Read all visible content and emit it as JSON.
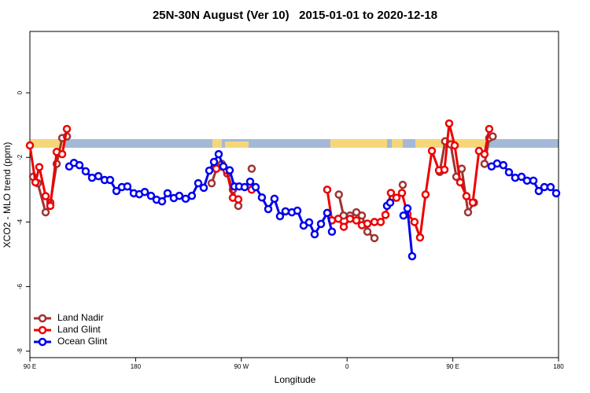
{
  "chart_data": {
    "type": "line",
    "title": "25N-30N August (Ver 10)   2015-01-01 to 2020-12-18",
    "x_label": "Longitude",
    "y_label": "XCO2 - MLO trend (ppm)",
    "xlim": [
      90,
      540
    ],
    "ylim": [
      -8.2,
      1.9
    ],
    "xticks": [
      {
        "value": 90,
        "label": "90 E"
      },
      {
        "value": 180,
        "label": "180"
      },
      {
        "value": 270,
        "label": "90 W"
      },
      {
        "value": 360,
        "label": "0"
      },
      {
        "value": 450,
        "label": "90 E"
      },
      {
        "value": 540,
        "label": "180"
      }
    ],
    "yticks": [
      0,
      -2,
      -4,
      -6,
      -8
    ],
    "legend": "bottom-left",
    "series": [
      {
        "name": "Land Nadir",
        "color": "#a03232",
        "x": [
          92.7,
          96.7,
          103.4,
          107.4,
          112.8,
          117.5,
          121.5,
          null,
          244.7,
          249.4,
          253.4,
          258,
          262.8,
          267.4,
          null,
          278.8,
          null,
          353,
          357,
          362.5,
          367.9,
          372.6,
          377.3,
          383.3,
          null,
          407.4,
          null,
          438.9,
          443.5,
          448.2,
          453,
          457.6,
          463,
          468,
          null,
          477,
          481,
          484
        ],
        "values": [
          -2.6,
          -2.8,
          -3.7,
          -3.4,
          -2.2,
          -1.4,
          -1.35,
          null,
          -2.8,
          -2.3,
          -2.2,
          -2.5,
          -3.0,
          -3.5,
          null,
          -2.35,
          null,
          -3.15,
          -3.8,
          -3.8,
          -3.7,
          -3.8,
          -4.3,
          -4.5,
          null,
          -2.85,
          null,
          -2.45,
          -1.5,
          -1.6,
          -2.6,
          -2.35,
          -3.7,
          -3.4,
          null,
          -2.2,
          -1.4,
          -1.35
        ]
      },
      {
        "name": "Land Glint",
        "color": "#ee0000",
        "x": [
          90,
          94.7,
          98,
          103.4,
          107.4,
          112.8,
          117.5,
          121.5,
          null,
          248.7,
          257.4,
          262.8,
          267.4,
          null,
          278.8,
          null,
          343.1,
          347.1,
          352.5,
          357.2,
          362.5,
          367.9,
          372.6,
          377.3,
          383.3,
          388.6,
          392.7,
          397.3,
          402,
          406.7,
          411.4,
          417.4,
          422.1,
          426.8,
          432.2,
          438.2,
          442.9,
          446.9,
          451.6,
          456.3,
          461.6,
          467,
          472.3,
          477,
          481
        ],
        "values": [
          -1.63,
          -2.77,
          -2.3,
          -3.2,
          -3.5,
          -1.83,
          -1.9,
          -1.12,
          null,
          -2.35,
          -2.4,
          -3.25,
          -3.3,
          null,
          -3.0,
          null,
          -3.0,
          -3.95,
          -3.9,
          -4.15,
          -3.9,
          -3.95,
          -4.1,
          -4.05,
          -4.0,
          -4.0,
          -3.78,
          -3.1,
          -3.25,
          -3.1,
          -3.75,
          -4.0,
          -4.48,
          -3.15,
          -1.8,
          -2.4,
          -2.38,
          -0.95,
          -1.63,
          -2.77,
          -3.2,
          -3.4,
          -1.8,
          -1.9,
          -1.12
        ]
      },
      {
        "name": "Ocean Glint",
        "color": "#0000ee",
        "x": [
          123.5,
          127.5,
          132.2,
          137.5,
          142.9,
          148.3,
          153.6,
          158.3,
          163.7,
          168.3,
          173,
          178.4,
          183.1,
          187.8,
          193.1,
          197.8,
          202.5,
          207.2,
          212.5,
          217.2,
          222.6,
          227.9,
          233.3,
          238,
          242.7,
          246.7,
          250.7,
          254.7,
          260.1,
          264.1,
          268.1,
          272.8,
          277.5,
          282.2,
          287.5,
          292.9,
          298.2,
          302.9,
          307.6,
          313,
          317.7,
          323,
          327.7,
          332.4,
          337.8,
          343.1,
          347.1,
          null,
          394,
          396.7,
          null,
          408,
          411.4,
          415.4,
          null,
          483,
          487.7,
          493,
          497.8,
          503.1,
          508.5,
          513.2,
          518.6,
          523.2,
          527.9,
          533.3,
          538
        ],
        "values": [
          -2.28,
          -2.17,
          -2.24,
          -2.43,
          -2.63,
          -2.58,
          -2.7,
          -2.7,
          -3.04,
          -2.92,
          -2.9,
          -3.11,
          -3.14,
          -3.07,
          -3.19,
          -3.31,
          -3.36,
          -3.11,
          -3.26,
          -3.19,
          -3.28,
          -3.19,
          -2.8,
          -2.94,
          -2.41,
          -2.14,
          -1.9,
          -2.28,
          -2.4,
          -2.9,
          -2.9,
          -2.92,
          -2.75,
          -2.92,
          -3.24,
          -3.6,
          -3.28,
          -3.82,
          -3.67,
          -3.7,
          -3.65,
          -4.11,
          -4.01,
          -4.38,
          -4.06,
          -3.72,
          -4.3,
          null,
          -3.5,
          -3.4,
          null,
          -3.8,
          -3.58,
          -5.06,
          null,
          -2.28,
          -2.19,
          -2.24,
          -2.46,
          -2.63,
          -2.6,
          -2.72,
          -2.72,
          -3.04,
          -2.92,
          -2.92,
          -3.11
        ]
      }
    ]
  }
}
